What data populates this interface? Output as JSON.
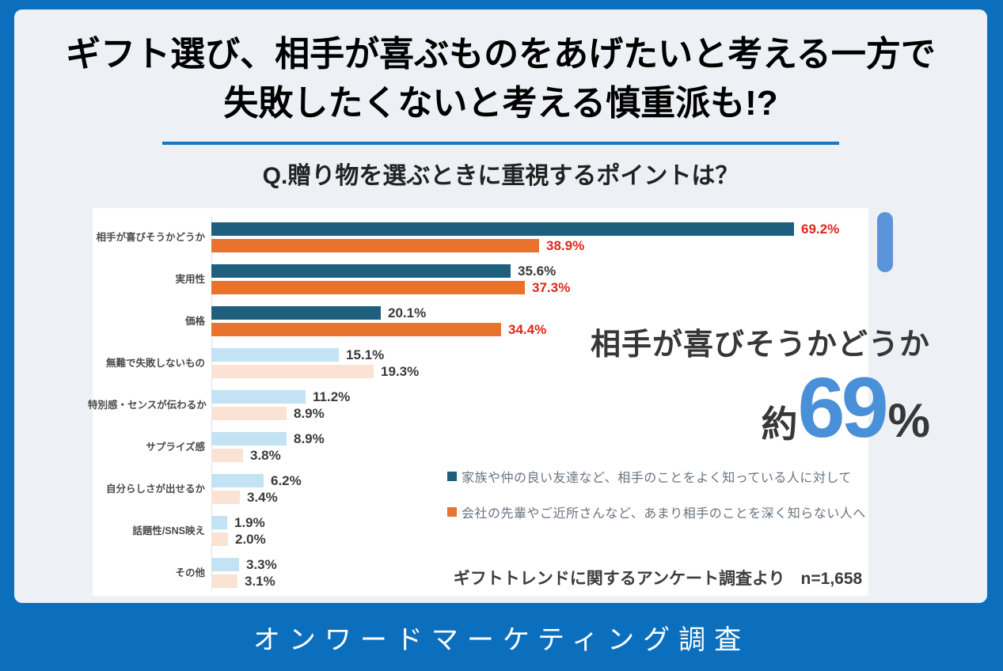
{
  "header": {
    "title_line1": "ギフト選び、相手が喜ぶものをあげたいと考える一方で",
    "title_line2": "失敗したくないと考える慎重派も!?",
    "question": "Q.贈り物を選ぶときに重視するポイントは？"
  },
  "chart_data": {
    "type": "bar",
    "orientation": "horizontal",
    "title": "Q.贈り物を選ぶときに重視するポイントは？",
    "xlim": [
      0,
      100
    ],
    "unit": "%",
    "grid": false,
    "legend_position": "right-middle",
    "categories": [
      "相手が喜びそうかどうか",
      "実用性",
      "価格",
      "無難で失敗しないもの",
      "特別感・センスが伝わるか",
      "サプライズ感",
      "自分らしさが出せるか",
      "話題性/SNS映え",
      "その他"
    ],
    "series": [
      {
        "name": "家族や仲の良い友達など、相手のことをよく知っている人に対して",
        "color": "#1f5f7e",
        "muted_color": "#c3e2f3",
        "values": [
          69.2,
          35.6,
          20.1,
          15.1,
          11.2,
          8.9,
          6.2,
          1.9,
          3.3
        ],
        "red_rows": [
          0
        ]
      },
      {
        "name": "会社の先輩やご近所さんなど、あまり相手のことを深く知らない人へ",
        "color": "#e7732e",
        "muted_color": "#fae3d4",
        "values": [
          38.9,
          37.3,
          34.4,
          19.3,
          8.9,
          3.8,
          3.4,
          2.0,
          3.1
        ],
        "red_rows": [
          0,
          1,
          2
        ]
      }
    ],
    "emphasized_rows": [
      0,
      1,
      2
    ]
  },
  "legend": [
    {
      "label": "家族や仲の良い友達など、相手のことをよく知っている人に対して",
      "color": "#1f5f7e"
    },
    {
      "label": "会社の先輩やご近所さんなど、あまり相手のことを深く知らない人へ",
      "color": "#e7732e"
    }
  ],
  "callout": {
    "text": "相手が喜びそうかどうか",
    "approx": "約",
    "number": "69",
    "percent": "%"
  },
  "note": {
    "text": "ギフトトレンドに関するアンケート調査より",
    "sample": "n=1,658"
  },
  "footer": {
    "label": "オンワードマーケティング調査"
  },
  "colors": {
    "frame_blue": "#0c6fbe",
    "panel_bg": "#edf0f5",
    "accent_underline": "#1877c0",
    "big_number_blue": "#4a90d8",
    "capsule_blue": "#5b94d9",
    "red_value_label": "#e1251b",
    "series_teal": "#1f5f7e",
    "series_orange": "#e7732e",
    "series_teal_muted": "#c3e2f3",
    "series_orange_muted": "#fae3d4"
  }
}
